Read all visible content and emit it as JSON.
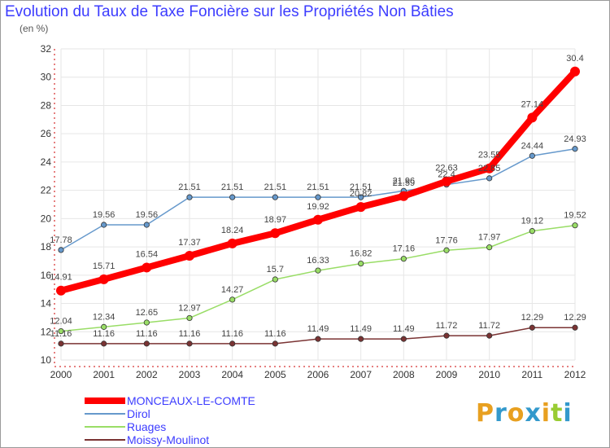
{
  "chart_data": {
    "type": "line",
    "title": "Evolution du Taux de Taxe Foncière sur les Propriétés Non Bâties",
    "subtitle": "(en %)",
    "xlabel": "",
    "ylabel": "(en %)",
    "categories": [
      "2000",
      "2001",
      "2002",
      "2003",
      "2004",
      "2005",
      "2006",
      "2007",
      "2008",
      "2009",
      "2010",
      "2011",
      "2012"
    ],
    "ylim": [
      10,
      32
    ],
    "yticks": [
      "10",
      "12",
      "14",
      "16",
      "18",
      "20",
      "22",
      "24",
      "26",
      "28",
      "30",
      "32"
    ],
    "grid": true,
    "legend_position": "bottom-left",
    "series": [
      {
        "name": "MONCEAUX-LE-COMTE",
        "color": "#ff0000",
        "values": [
          14.91,
          15.71,
          16.54,
          17.37,
          18.24,
          18.97,
          19.92,
          20.82,
          21.59,
          22.63,
          23.55,
          27.14,
          30.4
        ],
        "labels": [
          "14.91",
          "15.71",
          "16.54",
          "17.37",
          "18.24",
          "18.97",
          "19.92",
          "20.82",
          "21.59",
          "22.63",
          "23.55",
          "27.14",
          "30.4"
        ]
      },
      {
        "name": "Dirol",
        "color": "#6699cc",
        "values": [
          17.78,
          19.56,
          19.56,
          21.51,
          21.51,
          21.51,
          21.51,
          21.51,
          21.96,
          22.4,
          22.85,
          24.44,
          24.93
        ],
        "labels": [
          "17.78",
          "19.56",
          "19.56",
          "21.51",
          "21.51",
          "21.51",
          "21.51",
          "21.51",
          "21.96",
          "22.4",
          "22.85",
          "24.44",
          "24.93"
        ]
      },
      {
        "name": "Ruages",
        "color": "#99dd66",
        "values": [
          12.04,
          12.34,
          12.65,
          12.97,
          14.27,
          15.7,
          16.33,
          16.82,
          17.16,
          17.76,
          17.97,
          19.12,
          19.52
        ],
        "labels": [
          "12.04",
          "12.34",
          "12.65",
          "12.97",
          "14.27",
          "15.7",
          "16.33",
          "16.82",
          "17.16",
          "17.76",
          "17.97",
          "19.12",
          "19.52"
        ]
      },
      {
        "name": "Moissy-Moulinot",
        "color": "#7a3333",
        "values": [
          11.16,
          11.16,
          11.16,
          11.16,
          11.16,
          11.16,
          11.49,
          11.49,
          11.49,
          11.72,
          11.72,
          12.29,
          12.29
        ],
        "labels": [
          "11.16",
          "11.16",
          "11.16",
          "11.16",
          "11.16",
          "11.16",
          "11.49",
          "11.49",
          "11.49",
          "11.72",
          "11.72",
          "12.29",
          "12.29"
        ]
      }
    ]
  },
  "legend": {
    "items": [
      "MONCEAUX-LE-COMTE",
      "Dirol",
      "Ruages",
      "Moissy-Moulinot"
    ]
  },
  "logo": {
    "letters": [
      "P",
      "r",
      "o",
      "x",
      "i",
      "t",
      "i"
    ],
    "colors": [
      "#e8a020",
      "#3399cc",
      "#e8a020",
      "#3399cc",
      "#e8a020",
      "#99cc33",
      "#3399cc"
    ]
  }
}
